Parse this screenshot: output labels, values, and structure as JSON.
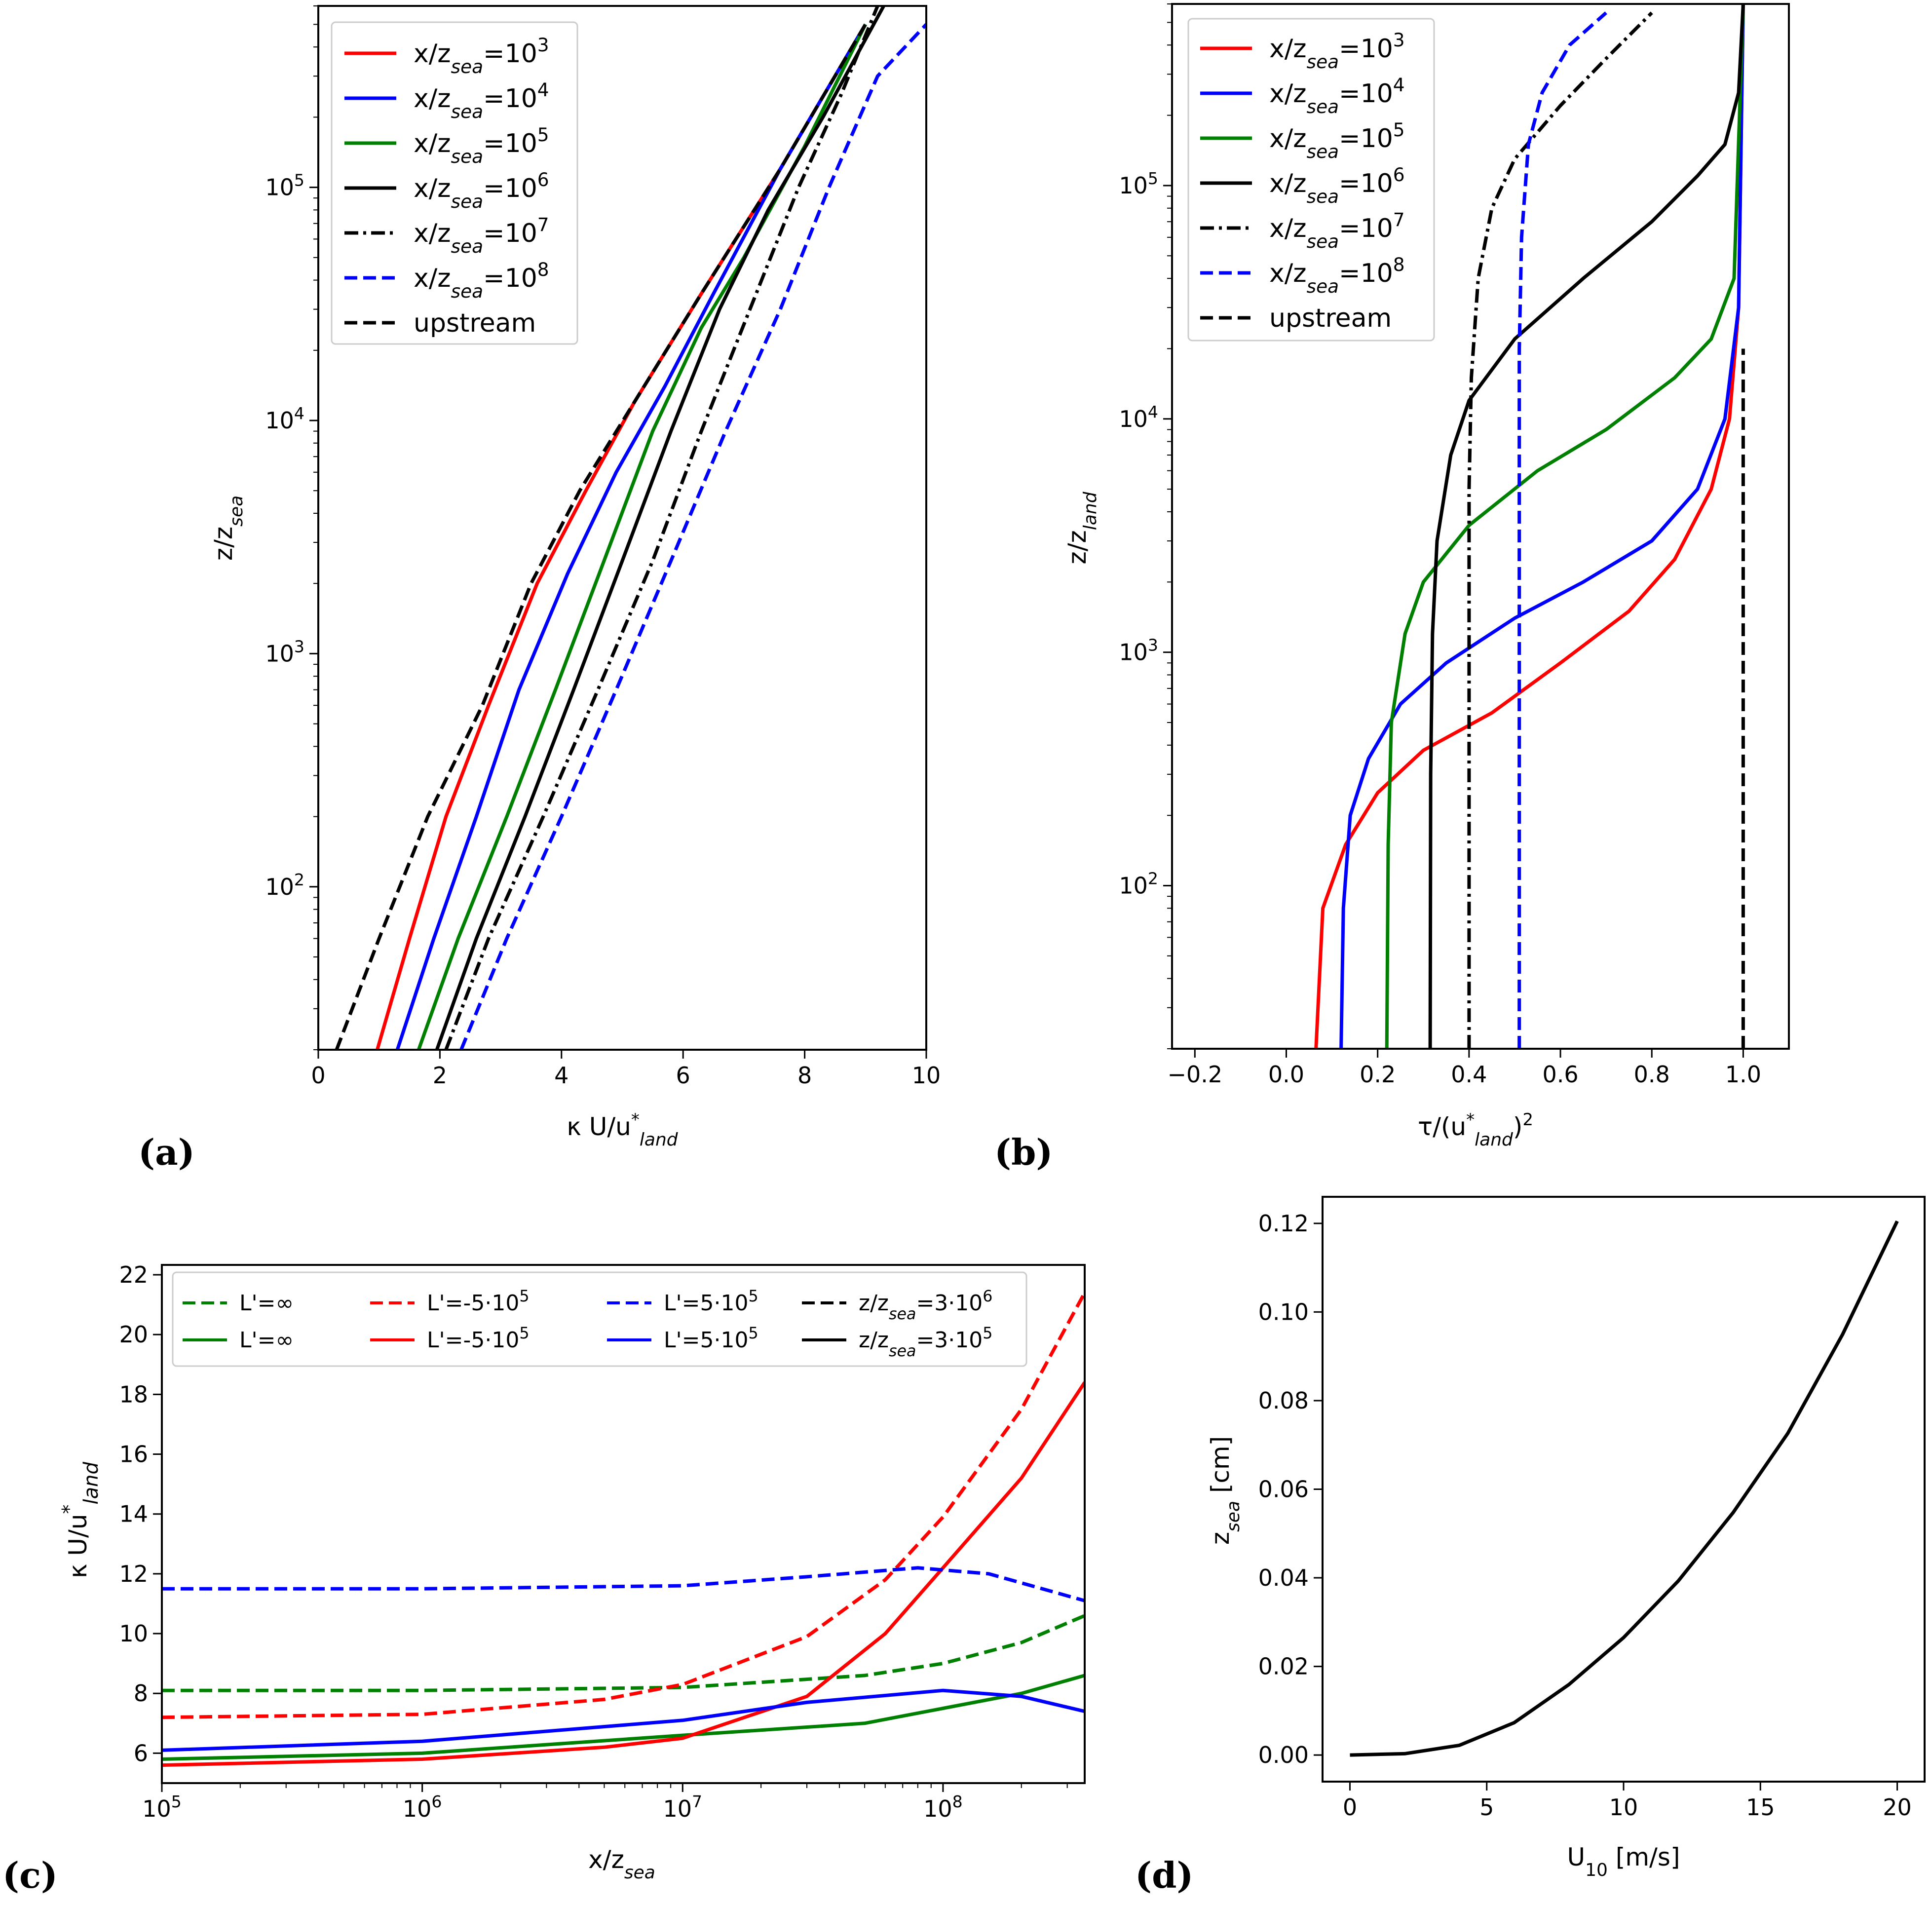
{
  "chart_data": [
    {
      "panel_label": "(a)",
      "type": "line",
      "xlabel": "κ U/u*land",
      "ylabel": "z/zsea",
      "xlim": [
        0,
        10
      ],
      "ylim": [
        20,
        600000
      ],
      "yscale": "log",
      "xticks": [
        "0",
        "2",
        "4",
        "6",
        "8",
        "10"
      ],
      "yticks": [
        "10^2",
        "10^3",
        "10^4",
        "10^5"
      ],
      "legend": [
        "x/zsea=10^3",
        "x/zsea=10^4",
        "x/zsea=10^5",
        "x/zsea=10^6",
        "x/zsea=10^7",
        "x/zsea=10^8",
        "upstream"
      ],
      "series": [
        {
          "name": "x/zsea=10^3",
          "color": "#ff0000",
          "dash": "solid",
          "points": [
            [
              0.97,
              20
            ],
            [
              1.5,
              60
            ],
            [
              2.1,
              200
            ],
            [
              2.8,
              600
            ],
            [
              3.6,
              2000
            ],
            [
              4.4,
              5000
            ],
            [
              5.2,
              12000
            ],
            [
              6.3,
              35000
            ],
            [
              7.6,
              120000
            ],
            [
              9.0,
              500000
            ]
          ]
        },
        {
          "name": "x/zsea=10^4",
          "color": "#0000ff",
          "dash": "solid",
          "points": [
            [
              1.3,
              20
            ],
            [
              1.9,
              60
            ],
            [
              2.6,
              200
            ],
            [
              3.3,
              700
            ],
            [
              4.1,
              2200
            ],
            [
              4.9,
              6000
            ],
            [
              5.7,
              14000
            ],
            [
              6.5,
              35000
            ],
            [
              7.6,
              120000
            ],
            [
              9.0,
              500000
            ]
          ]
        },
        {
          "name": "x/zsea=10^5",
          "color": "#008000",
          "dash": "solid",
          "points": [
            [
              1.65,
              20
            ],
            [
              2.3,
              60
            ],
            [
              3.1,
              200
            ],
            [
              3.9,
              700
            ],
            [
              4.7,
              2500
            ],
            [
              5.5,
              9000
            ],
            [
              6.3,
              25000
            ],
            [
              7.0,
              50000
            ],
            [
              8.0,
              150000
            ],
            [
              9.0,
              500000
            ]
          ]
        },
        {
          "name": "x/zsea=10^6",
          "color": "#000000",
          "dash": "solid",
          "points": [
            [
              1.95,
              20
            ],
            [
              2.6,
              60
            ],
            [
              3.4,
              200
            ],
            [
              4.2,
              700
            ],
            [
              5.0,
              2500
            ],
            [
              5.8,
              9000
            ],
            [
              6.6,
              30000
            ],
            [
              7.4,
              80000
            ],
            [
              8.3,
              200000
            ],
            [
              9.3,
              600000
            ]
          ]
        },
        {
          "name": "x/zsea=10^7",
          "color": "#000000",
          "dash": "dashdot",
          "points": [
            [
              2.1,
              20
            ],
            [
              2.8,
              60
            ],
            [
              3.7,
              200
            ],
            [
              4.6,
              700
            ],
            [
              5.5,
              2500
            ],
            [
              6.3,
              9000
            ],
            [
              7.1,
              30000
            ],
            [
              7.9,
              100000
            ],
            [
              8.6,
              250000
            ],
            [
              9.2,
              600000
            ]
          ]
        },
        {
          "name": "x/zsea=10^8",
          "color": "#0000ff",
          "dash": "dashed",
          "points": [
            [
              2.35,
              20
            ],
            [
              3.1,
              60
            ],
            [
              4.0,
              200
            ],
            [
              4.9,
              700
            ],
            [
              5.8,
              2500
            ],
            [
              6.7,
              9000
            ],
            [
              7.6,
              30000
            ],
            [
              8.4,
              100000
            ],
            [
              9.2,
              300000
            ],
            [
              10.0,
              500000
            ]
          ]
        },
        {
          "name": "upstream",
          "color": "#000000",
          "dash": "dashed",
          "points": [
            [
              0.3,
              20
            ],
            [
              1.0,
              60
            ],
            [
              1.8,
              200
            ],
            [
              2.7,
              600
            ],
            [
              3.5,
              2000
            ],
            [
              4.3,
              5000
            ],
            [
              5.2,
              12000
            ],
            [
              6.3,
              35000
            ],
            [
              7.6,
              120000
            ],
            [
              9.0,
              500000
            ]
          ]
        }
      ]
    },
    {
      "panel_label": "(b)",
      "type": "line",
      "xlabel": "τ/(u*land)^2",
      "ylabel": "z/zland",
      "xlim": [
        -0.25,
        1.1
      ],
      "ylim": [
        20,
        600000
      ],
      "yscale": "log",
      "xticks": [
        "−0.2",
        "0.0",
        "0.2",
        "0.4",
        "0.6",
        "0.8",
        "1.0"
      ],
      "yticks": [
        "10^2",
        "10^3",
        "10^4",
        "10^5"
      ],
      "legend": [
        "x/zsea=10^3",
        "x/zsea=10^4",
        "x/zsea=10^5",
        "x/zsea=10^6",
        "x/zsea=10^7",
        "x/zsea=10^8",
        "upstream"
      ],
      "series": [
        {
          "name": "x/zsea=10^3",
          "color": "#ff0000",
          "dash": "solid",
          "points": [
            [
              0.065,
              20
            ],
            [
              0.08,
              80
            ],
            [
              0.13,
              150
            ],
            [
              0.2,
              250
            ],
            [
              0.3,
              380
            ],
            [
              0.45,
              550
            ],
            [
              0.6,
              900
            ],
            [
              0.75,
              1500
            ],
            [
              0.85,
              2500
            ],
            [
              0.93,
              5000
            ],
            [
              0.97,
              10000
            ],
            [
              0.99,
              30000
            ],
            [
              1.0,
              600000
            ]
          ]
        },
        {
          "name": "x/zsea=10^4",
          "color": "#0000ff",
          "dash": "solid",
          "points": [
            [
              0.12,
              20
            ],
            [
              0.125,
              80
            ],
            [
              0.14,
              200
            ],
            [
              0.18,
              350
            ],
            [
              0.25,
              600
            ],
            [
              0.35,
              900
            ],
            [
              0.5,
              1400
            ],
            [
              0.65,
              2000
            ],
            [
              0.8,
              3000
            ],
            [
              0.9,
              5000
            ],
            [
              0.96,
              10000
            ],
            [
              0.99,
              30000
            ],
            [
              1.0,
              600000
            ]
          ]
        },
        {
          "name": "x/zsea=10^5",
          "color": "#008000",
          "dash": "solid",
          "points": [
            [
              0.22,
              20
            ],
            [
              0.223,
              150
            ],
            [
              0.23,
              500
            ],
            [
              0.26,
              1200
            ],
            [
              0.3,
              2000
            ],
            [
              0.4,
              3500
            ],
            [
              0.55,
              6000
            ],
            [
              0.7,
              9000
            ],
            [
              0.85,
              15000
            ],
            [
              0.93,
              22000
            ],
            [
              0.98,
              40000
            ],
            [
              1.0,
              600000
            ]
          ]
        },
        {
          "name": "x/zsea=10^6",
          "color": "#000000",
          "dash": "solid",
          "points": [
            [
              0.315,
              20
            ],
            [
              0.316,
              300
            ],
            [
              0.32,
              1200
            ],
            [
              0.33,
              3000
            ],
            [
              0.36,
              7000
            ],
            [
              0.4,
              12000
            ],
            [
              0.5,
              22000
            ],
            [
              0.65,
              40000
            ],
            [
              0.8,
              70000
            ],
            [
              0.9,
              110000
            ],
            [
              0.96,
              150000
            ],
            [
              0.99,
              250000
            ],
            [
              1.0,
              600000
            ]
          ]
        },
        {
          "name": "x/zsea=10^7",
          "color": "#000000",
          "dash": "dashdot",
          "points": [
            [
              0.4,
              20
            ],
            [
              0.4,
              5000
            ],
            [
              0.405,
              15000
            ],
            [
              0.42,
              40000
            ],
            [
              0.45,
              80000
            ],
            [
              0.5,
              130000
            ],
            [
              0.6,
              220000
            ],
            [
              0.7,
              350000
            ],
            [
              0.8,
              550000
            ]
          ]
        },
        {
          "name": "x/zsea=10^8",
          "color": "#0000ff",
          "dash": "dashed",
          "points": [
            [
              0.51,
              20
            ],
            [
              0.51,
              20000
            ],
            [
              0.515,
              60000
            ],
            [
              0.53,
              150000
            ],
            [
              0.56,
              250000
            ],
            [
              0.62,
              400000
            ],
            [
              0.7,
              550000
            ]
          ]
        },
        {
          "name": "upstream",
          "color": "#000000",
          "dash": "dashed",
          "points": [
            [
              1.0,
              20
            ],
            [
              1.0,
              20000
            ]
          ]
        }
      ]
    },
    {
      "panel_label": "(c)",
      "type": "line",
      "xlabel": "x/zsea",
      "ylabel": "κ U/u*land",
      "xlim": [
        100000,
        350000000
      ],
      "xscale": "log",
      "ylim": [
        5,
        22
      ],
      "xticks": [
        "10^5",
        "10^6",
        "10^7",
        "10^8"
      ],
      "yticks": [
        "6",
        "8",
        "10",
        "12",
        "14",
        "16",
        "18",
        "20",
        "22"
      ],
      "legend": [
        "L'=∞",
        "L'=∞",
        "L'=-5·10^5",
        "L'=-5·10^5",
        "L'=5·10^5",
        "L'=5·10^5",
        "z/zsea=3·10^6",
        "z/zsea=3·10^5"
      ],
      "series": [
        {
          "name": "L'=∞ (dashed)",
          "color": "#008000",
          "dash": "dashed",
          "points": [
            [
              100000,
              8.1
            ],
            [
              1000000,
              8.1
            ],
            [
              10000000,
              8.2
            ],
            [
              50000000,
              8.6
            ],
            [
              100000000,
              9.0
            ],
            [
              200000000,
              9.7
            ],
            [
              350000000,
              10.6
            ]
          ]
        },
        {
          "name": "L'=∞ (solid)",
          "color": "#008000",
          "dash": "solid",
          "points": [
            [
              100000,
              5.8
            ],
            [
              1000000,
              6.0
            ],
            [
              10000000,
              6.6
            ],
            [
              50000000,
              7.0
            ],
            [
              100000000,
              7.5
            ],
            [
              200000000,
              8.0
            ],
            [
              350000000,
              8.6
            ]
          ]
        },
        {
          "name": "L'=-5·10^5 (dashed)",
          "color": "#ff0000",
          "dash": "dashed",
          "points": [
            [
              100000,
              7.2
            ],
            [
              1000000,
              7.3
            ],
            [
              5000000,
              7.8
            ],
            [
              10000000,
              8.3
            ],
            [
              30000000,
              9.9
            ],
            [
              60000000,
              11.8
            ],
            [
              100000000,
              13.9
            ],
            [
              200000000,
              17.5
            ],
            [
              350000000,
              21.4
            ]
          ]
        },
        {
          "name": "L'=-5·10^5 (solid)",
          "color": "#ff0000",
          "dash": "solid",
          "points": [
            [
              100000,
              5.6
            ],
            [
              1000000,
              5.8
            ],
            [
              5000000,
              6.2
            ],
            [
              10000000,
              6.5
            ],
            [
              30000000,
              7.9
            ],
            [
              60000000,
              10.0
            ],
            [
              100000000,
              12.2
            ],
            [
              200000000,
              15.2
            ],
            [
              350000000,
              18.4
            ]
          ]
        },
        {
          "name": "L'=5·10^5 (dashed)",
          "color": "#0000ff",
          "dash": "dashed",
          "points": [
            [
              100000,
              11.5
            ],
            [
              1000000,
              11.5
            ],
            [
              10000000,
              11.6
            ],
            [
              30000000,
              11.9
            ],
            [
              80000000,
              12.2
            ],
            [
              150000000,
              12.0
            ],
            [
              350000000,
              11.1
            ]
          ]
        },
        {
          "name": "L'=5·10^5 (solid)",
          "color": "#0000ff",
          "dash": "solid",
          "points": [
            [
              100000,
              6.1
            ],
            [
              1000000,
              6.4
            ],
            [
              10000000,
              7.1
            ],
            [
              30000000,
              7.7
            ],
            [
              100000000,
              8.1
            ],
            [
              200000000,
              7.9
            ],
            [
              350000000,
              7.4
            ]
          ]
        }
      ]
    },
    {
      "panel_label": "(d)",
      "type": "line",
      "xlabel": "U10 [m/s]",
      "ylabel": "zsea [cm]",
      "xlim": [
        -1,
        21
      ],
      "ylim": [
        -0.006,
        0.126
      ],
      "xticks": [
        "0",
        "5",
        "10",
        "15",
        "20"
      ],
      "yticks": [
        "0.00",
        "0.02",
        "0.04",
        "0.06",
        "0.08",
        "0.10",
        "0.12"
      ],
      "series": [
        {
          "name": "zsea",
          "color": "#000000",
          "dash": "solid",
          "points": [
            [
              0,
              0
            ],
            [
              2,
              0.0003
            ],
            [
              4,
              0.0022
            ],
            [
              6,
              0.0073
            ],
            [
              8,
              0.0159
            ],
            [
              10,
              0.0265
            ],
            [
              12,
              0.0393
            ],
            [
              14,
              0.0547
            ],
            [
              16,
              0.0726
            ],
            [
              18,
              0.0949
            ],
            [
              20,
              0.1205
            ]
          ]
        }
      ]
    }
  ]
}
